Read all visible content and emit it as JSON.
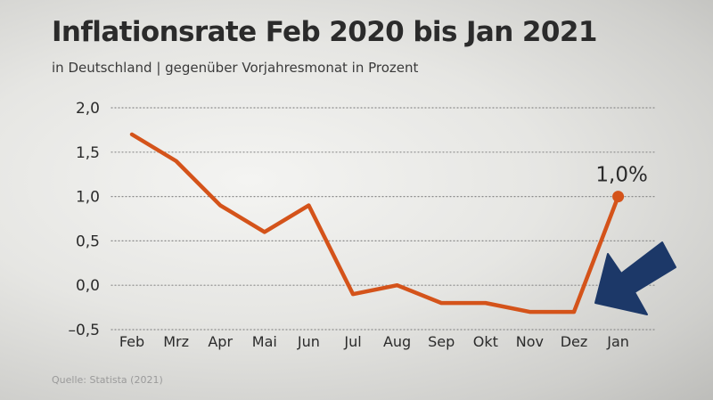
{
  "title": "Inflationsrate Feb 2020 bis Jan 2021",
  "subtitle": "in Deutschland | gegenüber Vorjahresmonat in Prozent",
  "source": "Quelle: Statista (2021)",
  "colors": {
    "line": "#d4531a",
    "arrow": "#1c3868",
    "text": "#2b2b2b",
    "grid": "#8a8a8a"
  },
  "chart_data": {
    "type": "line",
    "categories": [
      "Feb",
      "Mrz",
      "Apr",
      "Mai",
      "Jun",
      "Jul",
      "Aug",
      "Sep",
      "Okt",
      "Nov",
      "Dez",
      "Jan"
    ],
    "values": [
      1.7,
      1.4,
      0.9,
      0.6,
      0.9,
      -0.1,
      0.0,
      -0.2,
      -0.2,
      -0.3,
      -0.3,
      1.0
    ],
    "y_ticks": [
      "2,0",
      "1,5",
      "1,0",
      "0,5",
      "0,0",
      "–0,5"
    ],
    "y_tick_values": [
      2.0,
      1.5,
      1.0,
      0.5,
      0.0,
      -0.5
    ],
    "ylim": [
      -0.5,
      2.0
    ],
    "annotation": {
      "label": "1,0%",
      "category": "Jan"
    },
    "grid": "horizontal",
    "arrow_icon": "arrow-pointing-down-left-icon"
  }
}
